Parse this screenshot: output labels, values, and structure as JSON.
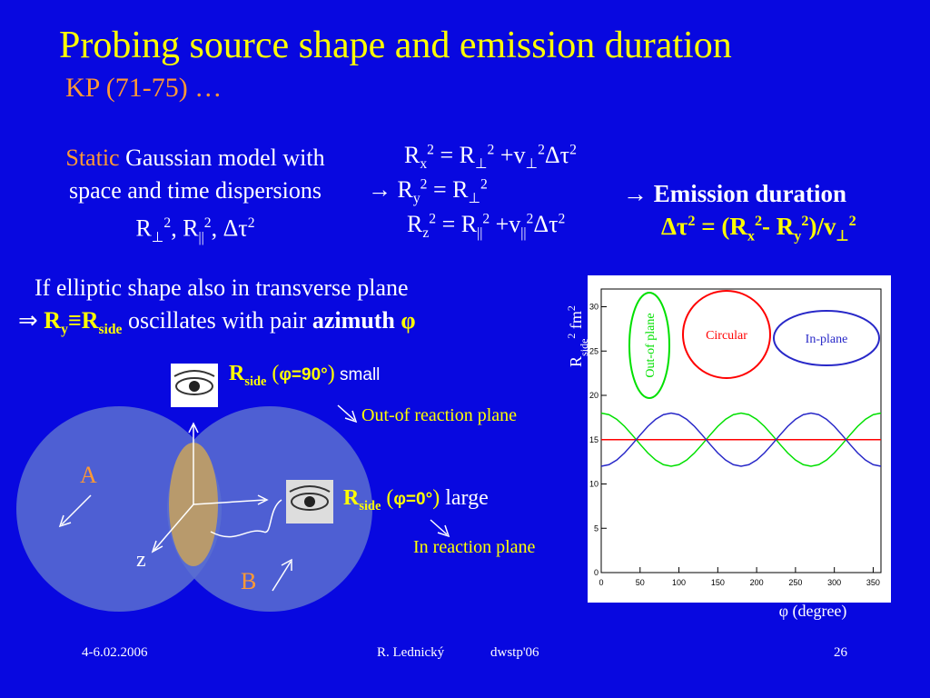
{
  "header": {
    "title": "Probing source shape and emission duration",
    "subtitle": "KP (71-75) …"
  },
  "model": {
    "line1": [
      "Static",
      " Gaussian model with"
    ],
    "line2": "space and time dispersions",
    "line3": [
      "R",
      "⊥",
      "2",
      ", R",
      "||",
      "2",
      ", Δτ",
      "2"
    ]
  },
  "radii": {
    "rx": [
      "R",
      "x",
      "2",
      " = R",
      "⊥",
      "2",
      " +v",
      "⊥",
      "2",
      "Δτ",
      "2"
    ],
    "ry": [
      "→ R",
      "y",
      "2",
      " = R",
      "⊥",
      "2"
    ],
    "rz": [
      "R",
      "z",
      "2",
      " = R",
      "||",
      "2",
      " +v",
      "||",
      "2",
      "Δτ",
      "2"
    ]
  },
  "emission": {
    "heading": "→ Emission duration",
    "formula": [
      "Δτ",
      "2",
      " = (",
      "R",
      "x",
      "2",
      "- R",
      "y",
      "2",
      ")/v",
      "⊥",
      "2"
    ]
  },
  "elliptic": {
    "line1": "If elliptic shape also in transverse plane",
    "line2": [
      "⇒ ",
      "R",
      "y",
      "≡",
      "R",
      "side",
      " oscillates with pair ",
      "azimuth ",
      "φ"
    ]
  },
  "diagram": {
    "side90": [
      "R",
      "side",
      " (",
      "φ=90°",
      ")",
      " small"
    ],
    "side90_note": "Out-of reaction plane",
    "side0": [
      "R",
      "side",
      " (",
      "φ=0°",
      ")",
      " large"
    ],
    "side0_note": "In reaction plane",
    "label_a": "A",
    "label_b": "B",
    "label_z": "z"
  },
  "chart_data": {
    "type": "line",
    "y_label": [
      "R",
      "side",
      "2",
      " fm",
      "2"
    ],
    "x_label": "φ (degree)",
    "x": [
      0,
      10,
      20,
      30,
      40,
      50,
      60,
      70,
      80,
      90,
      100,
      110,
      120,
      130,
      140,
      150,
      160,
      170,
      180,
      190,
      200,
      210,
      220,
      230,
      240,
      250,
      260,
      270,
      280,
      290,
      300,
      310,
      320,
      330,
      340,
      350,
      360
    ],
    "series": [
      {
        "name": "Out-of plane",
        "color": "#00e000",
        "values": [
          18,
          17.82,
          17.3,
          16.5,
          15.52,
          14.48,
          13.5,
          12.7,
          12.18,
          12,
          12.18,
          12.7,
          13.5,
          14.48,
          15.52,
          16.5,
          17.3,
          17.82,
          18,
          17.82,
          17.3,
          16.5,
          15.52,
          14.48,
          13.5,
          12.7,
          12.18,
          12,
          12.18,
          12.7,
          13.5,
          14.48,
          15.52,
          16.5,
          17.3,
          17.82,
          18
        ]
      },
      {
        "name": "Circular",
        "color": "#ff0000",
        "values": [
          15,
          15,
          15,
          15,
          15,
          15,
          15,
          15,
          15,
          15,
          15,
          15,
          15,
          15,
          15,
          15,
          15,
          15,
          15,
          15,
          15,
          15,
          15,
          15,
          15,
          15,
          15,
          15,
          15,
          15,
          15,
          15,
          15,
          15,
          15,
          15,
          15
        ]
      },
      {
        "name": "In-plane",
        "color": "#2828c8",
        "values": [
          12,
          12.18,
          12.7,
          13.5,
          14.48,
          15.52,
          16.5,
          17.3,
          17.82,
          18,
          17.82,
          17.3,
          16.5,
          15.52,
          14.48,
          13.5,
          12.7,
          12.18,
          12,
          12.18,
          12.7,
          13.5,
          14.48,
          15.52,
          16.5,
          17.3,
          17.82,
          18,
          17.82,
          17.3,
          16.5,
          15.52,
          14.48,
          13.5,
          12.7,
          12.18,
          12
        ]
      }
    ],
    "xlim": [
      0,
      360
    ],
    "xticks": [
      0,
      50,
      100,
      150,
      200,
      250,
      300,
      350
    ],
    "ylim": [
      0,
      32
    ],
    "yticks": [
      0,
      5,
      10,
      15,
      20,
      25,
      30
    ]
  },
  "footer": {
    "date": "4-6.02.2006",
    "author": "R. Lednický",
    "event": "dwstp'06",
    "page": "26"
  }
}
